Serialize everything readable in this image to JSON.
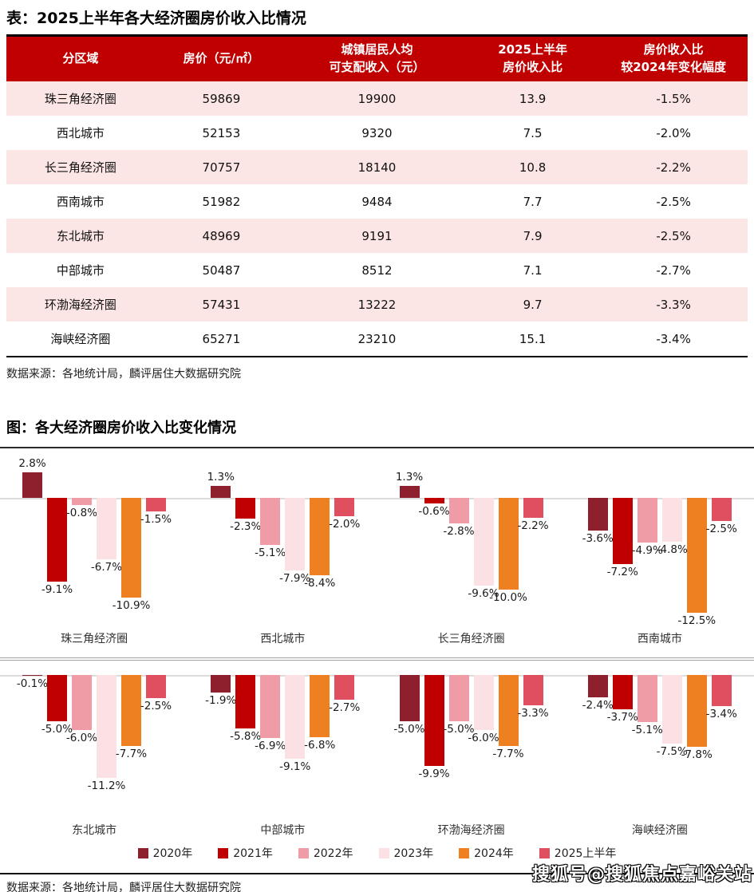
{
  "table": {
    "title": "表：2025上半年各大经济圈房价收入比情况",
    "columns": [
      "分区域",
      "房价（元/㎡）",
      "城镇居民人均\n可支配收入（元）",
      "2025上半年\n房价收入比",
      "房价收入比\n较2024年变化幅度"
    ],
    "rows": [
      [
        "珠三角经济圈",
        "59869",
        "19900",
        "13.9",
        "-1.5%"
      ],
      [
        "西北城市",
        "52153",
        "9320",
        "7.5",
        "-2.0%"
      ],
      [
        "长三角经济圈",
        "70757",
        "18140",
        "10.8",
        "-2.2%"
      ],
      [
        "西南城市",
        "51982",
        "9484",
        "7.7",
        "-2.5%"
      ],
      [
        "东北城市",
        "48969",
        "9191",
        "7.9",
        "-2.5%"
      ],
      [
        "中部城市",
        "50487",
        "8512",
        "7.1",
        "-2.7%"
      ],
      [
        "环渤海经济圈",
        "57431",
        "13222",
        "9.7",
        "-3.3%"
      ],
      [
        "海峡经济圈",
        "65271",
        "23210",
        "15.1",
        "-3.4%"
      ]
    ],
    "source": "数据来源：各地统计局，麟评居住大数据研究院"
  },
  "chart": {
    "title": "图：各大经济圈房价收入比变化情况",
    "source": "数据来源：各地统计局，麟评居住大数据研究院"
  },
  "chart_data": {
    "type": "bar",
    "title": "各大经济圈房价收入比变化情况",
    "unit": "%",
    "grid": false,
    "zero_line": true,
    "legend_position": "bottom",
    "ylim": [
      -12.5,
      2.8
    ],
    "categories": [
      "珠三角经济圈",
      "西北城市",
      "长三角经济圈",
      "西南城市",
      "东北城市",
      "中部城市",
      "环渤海经济圈",
      "海峡经济圈"
    ],
    "series": [
      {
        "name": "2020年",
        "color": "#8E1F2C",
        "values": [
          2.8,
          1.3,
          1.3,
          -3.6,
          -0.1,
          -1.9,
          -5.0,
          -2.4
        ]
      },
      {
        "name": "2021年",
        "color": "#C00000",
        "values": [
          -9.1,
          -2.3,
          -0.6,
          -7.2,
          -5.0,
          -5.8,
          -9.9,
          -3.7
        ]
      },
      {
        "name": "2022年",
        "color": "#EF9CA6",
        "values": [
          -0.8,
          -5.1,
          -2.8,
          -4.9,
          -6.0,
          -6.9,
          -5.0,
          -5.1
        ]
      },
      {
        "name": "2023年",
        "color": "#FBE0E4",
        "values": [
          -6.7,
          -7.9,
          -9.6,
          -4.8,
          -11.2,
          -9.1,
          -6.0,
          -7.5
        ]
      },
      {
        "name": "2024年",
        "color": "#EE8022",
        "values": [
          -10.9,
          -8.4,
          -10.0,
          -12.5,
          -7.7,
          -6.8,
          -7.7,
          -7.8
        ]
      },
      {
        "name": "2025上半年",
        "color": "#DF4F5F",
        "values": [
          -1.5,
          -2.0,
          -2.2,
          -2.5,
          -2.5,
          -2.7,
          -3.3,
          -3.4
        ]
      }
    ]
  },
  "colors": {
    "header_bg": "#C00000",
    "row_alt_bg": "#FCE6E5",
    "zero_line": "#DCDCDC"
  },
  "watermark": "搜狐号@搜狐焦点嘉峪关站"
}
